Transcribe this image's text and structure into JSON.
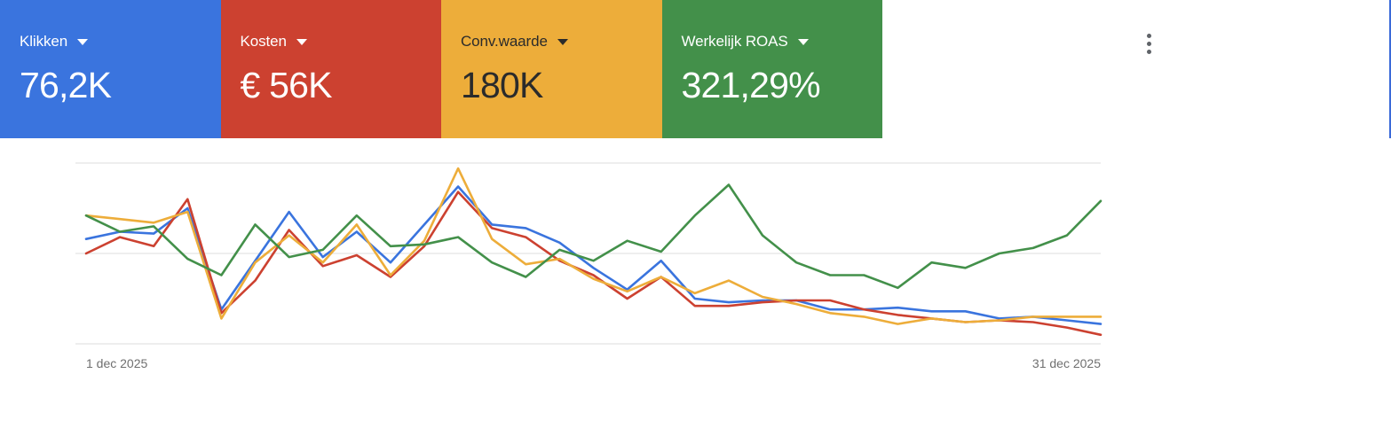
{
  "cards": [
    {
      "label": "Klikken",
      "value": "76,2K",
      "color": "#3a74de"
    },
    {
      "label": "Kosten",
      "value": "€ 56K",
      "color": "#cc4130"
    },
    {
      "label": "Conv.waarde",
      "value": "180K",
      "color": "#edad3a"
    },
    {
      "label": "Werkelijk ROAS",
      "value": "321,29%",
      "color": "#43904a"
    }
  ],
  "menu_icon": "more-vert-icon",
  "chart_data": {
    "type": "line",
    "x_start_label": "1 dec 2025",
    "x_end_label": "31 dec 2025",
    "grid": true,
    "ylim": [
      0,
      100
    ],
    "series": [
      {
        "name": "Klikken",
        "color": "#3a74de",
        "values": [
          58,
          62,
          61,
          75,
          19,
          46,
          73,
          48,
          62,
          45,
          66,
          87,
          66,
          64,
          56,
          42,
          30,
          46,
          25,
          23,
          24,
          24,
          19,
          19,
          20,
          18,
          18,
          14,
          15,
          13,
          11
        ]
      },
      {
        "name": "Kosten",
        "color": "#cc4130",
        "values": [
          50,
          59,
          54,
          80,
          17,
          35,
          63,
          43,
          49,
          37,
          54,
          84,
          64,
          59,
          46,
          38,
          25,
          37,
          21,
          21,
          23,
          24,
          24,
          19,
          16,
          14,
          12,
          13,
          12,
          9,
          5
        ]
      },
      {
        "name": "Conv.waarde",
        "color": "#edad3a",
        "values": [
          71,
          69,
          67,
          73,
          14,
          45,
          60,
          45,
          66,
          38,
          57,
          97,
          58,
          44,
          47,
          36,
          29,
          37,
          28,
          35,
          26,
          22,
          17,
          15,
          11,
          14,
          12,
          13,
          15,
          15,
          15
        ]
      },
      {
        "name": "Werkelijk ROAS",
        "color": "#43904a",
        "values": [
          71,
          62,
          65,
          47,
          38,
          66,
          48,
          52,
          71,
          54,
          55,
          59,
          45,
          37,
          52,
          46,
          57,
          51,
          71,
          88,
          60,
          45,
          38,
          38,
          31,
          45,
          42,
          50,
          53,
          60,
          79
        ]
      }
    ]
  }
}
